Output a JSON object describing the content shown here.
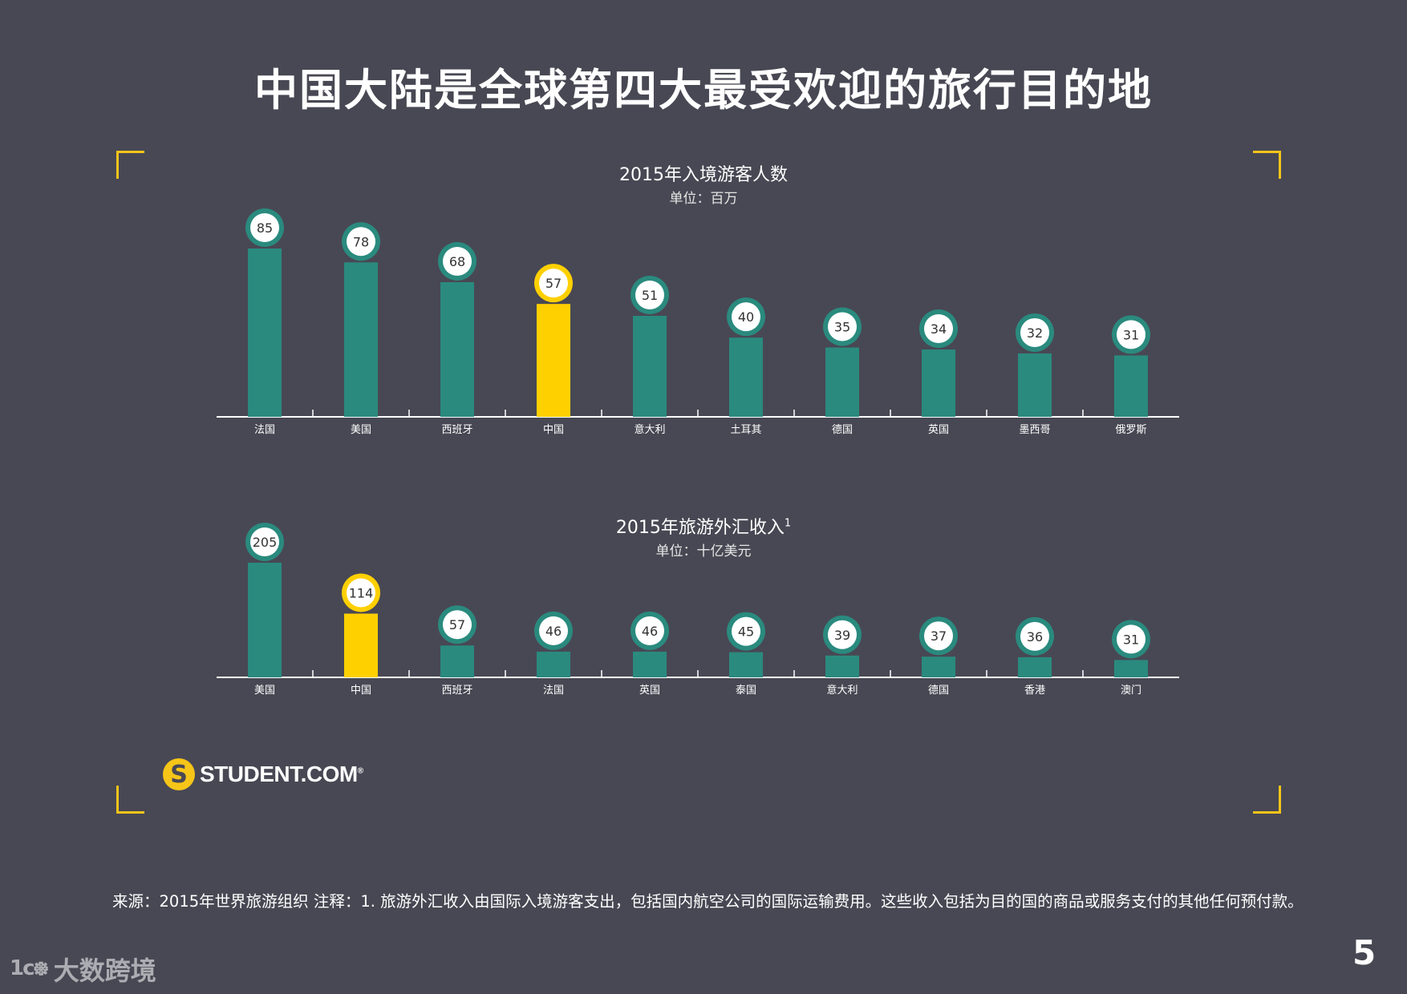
{
  "title": "中国大陆是全球第四大最受欢迎的旅行目的地",
  "colors": {
    "background": "#484854",
    "bar": "#2a8a7e",
    "highlight": "#ffd000",
    "axis": "#ffffff",
    "accent": "#f5c518"
  },
  "chart_data": [
    {
      "type": "bar",
      "title": "2015年入境游客人数",
      "unit": "单位：百万",
      "categories": [
        "法国",
        "美国",
        "西班牙",
        "中国",
        "意大利",
        "土耳其",
        "德国",
        "英国",
        "墨西哥",
        "俄罗斯"
      ],
      "values": [
        85,
        78,
        68,
        57,
        51,
        40,
        35,
        34,
        32,
        31
      ],
      "highlight": "中国",
      "ylim": [
        0,
        85
      ]
    },
    {
      "type": "bar",
      "title": "2015年旅游外汇收入",
      "title_sup": "1",
      "unit": "单位：十亿美元",
      "categories": [
        "美国",
        "中国",
        "西班牙",
        "法国",
        "英国",
        "泰国",
        "意大利",
        "德国",
        "香港",
        "澳门"
      ],
      "values": [
        205,
        114,
        57,
        46,
        46,
        45,
        39,
        37,
        36,
        31
      ],
      "highlight": "中国",
      "ylim": [
        0,
        205
      ]
    }
  ],
  "logo": {
    "mark": "S",
    "text": "STUDENT.COM",
    "registered": "®"
  },
  "source_note": "来源：2015年世界旅游组织 注释：1. 旅游外汇收入由国际入境游客支出，包括国内航空公司的国际运输费用。这些收入包括为目的国的商品或服务支付的其他任何预付款。",
  "page_number": "5",
  "watermark": {
    "icon": "1ᴄ᪥",
    "text": "大数跨境"
  }
}
